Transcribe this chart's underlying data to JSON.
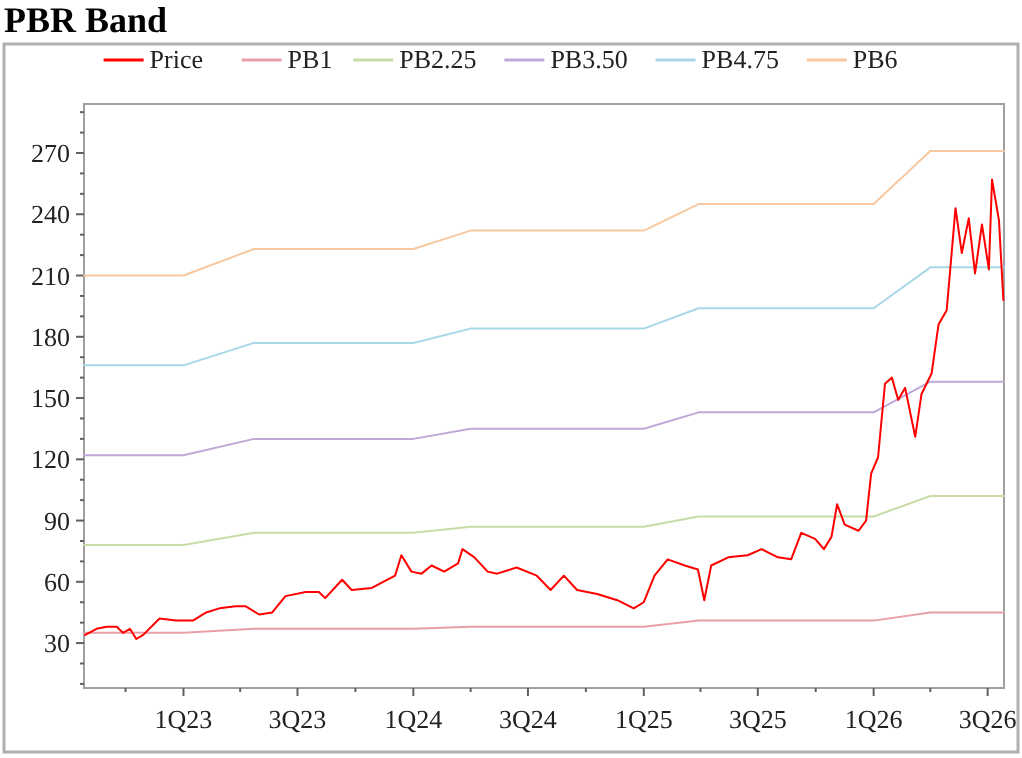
{
  "chart_data": {
    "type": "line",
    "title": "PBR Band",
    "legend": "top",
    "grid": false,
    "marker": "none",
    "line_style": "solid",
    "xlim": [
      "2022-07-27",
      "2026-07-27"
    ],
    "xticks": [
      {
        "value": "2022-10-01",
        "label": null
      },
      {
        "value": "2023-01-01",
        "label": "1Q23"
      },
      {
        "value": "2023-04-01",
        "label": null
      },
      {
        "value": "2023-07-01",
        "label": "3Q23"
      },
      {
        "value": "2023-10-01",
        "label": null
      },
      {
        "value": "2024-01-01",
        "label": "1Q24"
      },
      {
        "value": "2024-04-01",
        "label": null
      },
      {
        "value": "2024-07-01",
        "label": "3Q24"
      },
      {
        "value": "2024-10-01",
        "label": null
      },
      {
        "value": "2025-01-01",
        "label": "1Q25"
      },
      {
        "value": "2025-04-01",
        "label": null
      },
      {
        "value": "2025-07-01",
        "label": "3Q25"
      },
      {
        "value": "2025-10-01",
        "label": null
      },
      {
        "value": "2026-01-01",
        "label": "1Q26"
      },
      {
        "value": "2026-04-01",
        "label": null
      },
      {
        "value": "2026-07-01",
        "label": "3Q26"
      }
    ],
    "ylim": [
      8,
      294
    ],
    "yticks": [
      {
        "value": 10,
        "label": null
      },
      {
        "value": 20,
        "label": null
      },
      30,
      {
        "value": 40,
        "label": null
      },
      {
        "value": 50,
        "label": null
      },
      60,
      {
        "value": 70,
        "label": null
      },
      {
        "value": 80,
        "label": null
      },
      90,
      {
        "value": 100,
        "label": null
      },
      {
        "value": 110,
        "label": null
      },
      120,
      {
        "value": 130,
        "label": null
      },
      {
        "value": 140,
        "label": null
      },
      150,
      {
        "value": 160,
        "label": null
      },
      {
        "value": 170,
        "label": null
      },
      180,
      {
        "value": 190,
        "label": null
      },
      {
        "value": 200,
        "label": null
      },
      210,
      {
        "value": 220,
        "label": null
      },
      {
        "value": 230,
        "label": null
      },
      240,
      {
        "value": 250,
        "label": null
      },
      {
        "value": 260,
        "label": null
      },
      270,
      {
        "value": 280,
        "label": null
      },
      {
        "value": 290,
        "label": null
      }
    ],
    "series": [
      {
        "name": "Price",
        "color": "#ff0000",
        "x": [
          "2022-07-29",
          "2022-08-16",
          "2022-09-01",
          "2022-09-17",
          "2022-09-27",
          "2022-10-08",
          "2022-10-18",
          "2022-10-29",
          "2022-11-24",
          "2022-12-20",
          "2023-01-16",
          "2023-02-06",
          "2023-02-27",
          "2023-03-25",
          "2023-04-10",
          "2023-05-01",
          "2023-05-22",
          "2023-06-12",
          "2023-07-14",
          "2023-08-04",
          "2023-08-14",
          "2023-09-10",
          "2023-09-25",
          "2023-10-27",
          "2023-12-03",
          "2023-12-13",
          "2023-12-29",
          "2024-01-14",
          "2024-01-30",
          "2024-02-19",
          "2024-03-12",
          "2024-03-19",
          "2024-04-07",
          "2024-04-28",
          "2024-05-13",
          "2024-06-13",
          "2024-07-15",
          "2024-08-06",
          "2024-08-27",
          "2024-09-17",
          "2024-10-19",
          "2024-11-20",
          "2024-12-16",
          "2025-01-01",
          "2025-01-18",
          "2025-02-08",
          "2025-03-07",
          "2025-03-28",
          "2025-04-07",
          "2025-04-18",
          "2025-05-15",
          "2025-06-15",
          "2025-07-07",
          "2025-08-02",
          "2025-08-23",
          "2025-09-08",
          "2025-09-30",
          "2025-10-14",
          "2025-10-26",
          "2025-11-04",
          "2025-11-16",
          "2025-12-08",
          "2025-12-20",
          "2025-12-28",
          "2026-01-08",
          "2026-01-19",
          "2026-01-30",
          "2026-02-09",
          "2026-02-20",
          "2026-03-08",
          "2026-03-18",
          "2026-04-03",
          "2026-04-14",
          "2026-04-27",
          "2026-05-11",
          "2026-05-21",
          "2026-06-01",
          "2026-06-11",
          "2026-06-22",
          "2026-07-03",
          "2026-07-08",
          "2026-07-19",
          "2026-07-26"
        ],
        "values": [
          34,
          37,
          38,
          38,
          35,
          37,
          32,
          34,
          42,
          41,
          41,
          45,
          47,
          48,
          48,
          44,
          45,
          53,
          55,
          55,
          52,
          61,
          56,
          57,
          63,
          73,
          65,
          64,
          68,
          65,
          69,
          76,
          72,
          65,
          64,
          67,
          63,
          56,
          63,
          56,
          54,
          51,
          47,
          50,
          63,
          71,
          68,
          66,
          51,
          68,
          72,
          73,
          76,
          72,
          71,
          84,
          81,
          76,
          82,
          98,
          88,
          85,
          90,
          113,
          121,
          157,
          160,
          149,
          155,
          131,
          152,
          162,
          186,
          193,
          243,
          221,
          238,
          211,
          235,
          213,
          257,
          237,
          198
        ]
      },
      {
        "name": "PB1",
        "color": "#e8a0a8",
        "x": [
          "2022-07-27",
          "2023-01-01",
          "2023-04-23",
          "2024-01-01",
          "2024-04-01",
          "2025-01-01",
          "2025-03-29",
          "2026-01-01",
          "2026-04-01",
          "2026-07-27"
        ],
        "values": [
          35,
          35,
          37,
          37,
          38,
          38,
          41,
          41,
          45,
          45
        ]
      },
      {
        "name": "PB2.25",
        "color": "#c8dca8",
        "x": [
          "2022-07-27",
          "2023-01-01",
          "2023-04-23",
          "2024-01-01",
          "2024-04-01",
          "2025-01-01",
          "2025-03-29",
          "2026-01-01",
          "2026-04-01",
          "2026-07-27"
        ],
        "values": [
          78,
          78,
          84,
          84,
          87,
          87,
          92,
          92,
          102,
          102
        ]
      },
      {
        "name": "PB3.50",
        "color": "#c0a8d8",
        "x": [
          "2022-07-27",
          "2023-01-01",
          "2023-04-23",
          "2024-01-01",
          "2024-04-01",
          "2025-01-01",
          "2025-03-29",
          "2026-01-01",
          "2026-04-01",
          "2026-07-27"
        ],
        "values": [
          122,
          122,
          130,
          130,
          135,
          135,
          143,
          143,
          158,
          158
        ]
      },
      {
        "name": "PB4.75",
        "color": "#a8d8e8",
        "x": [
          "2022-07-27",
          "2023-01-01",
          "2023-04-23",
          "2024-01-01",
          "2024-04-01",
          "2025-01-01",
          "2025-03-29",
          "2026-01-01",
          "2026-04-01",
          "2026-07-27"
        ],
        "values": [
          166,
          166,
          177,
          177,
          184,
          184,
          194,
          194,
          214,
          214
        ]
      },
      {
        "name": "PB6",
        "color": "#f8c8a0",
        "x": [
          "2022-07-27",
          "2023-01-01",
          "2023-04-23",
          "2024-01-01",
          "2024-04-01",
          "2025-01-01",
          "2025-03-29",
          "2026-01-01",
          "2026-04-01",
          "2026-07-27"
        ],
        "values": [
          210,
          210,
          223,
          223,
          232,
          232,
          245,
          245,
          271,
          271
        ]
      }
    ]
  }
}
